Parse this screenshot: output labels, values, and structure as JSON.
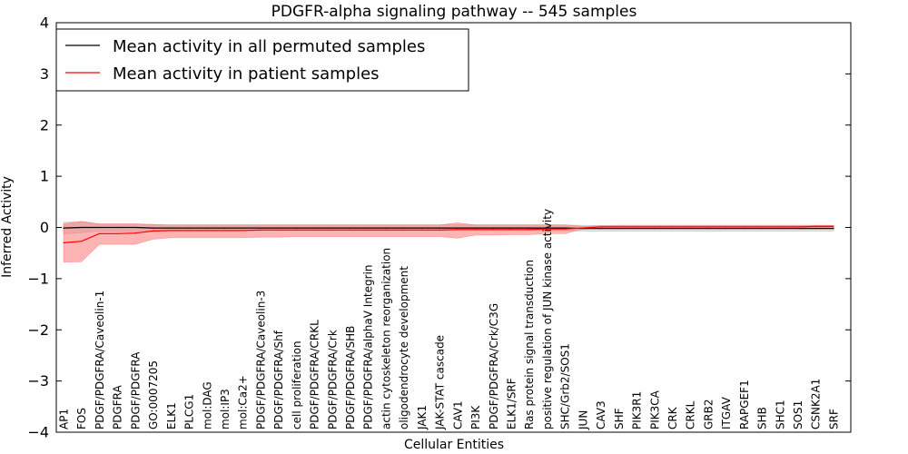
{
  "chart_data": {
    "type": "line",
    "title": "PDGFR-alpha signaling pathway -- 545 samples",
    "xlabel": "Cellular Entities",
    "ylabel": "Inferred Activity",
    "ylim": [
      -4,
      4
    ],
    "yticks": [
      -4,
      -3,
      -2,
      -1,
      0,
      1,
      2,
      3,
      4
    ],
    "ytick_labels": [
      "−4",
      "−3",
      "−2",
      "−1",
      "0",
      "1",
      "2",
      "3",
      "4"
    ],
    "legend_position": "top-left",
    "grid": false,
    "categories": [
      "AP1",
      "FOS",
      "PDGF/PDGFRA/Caveolin-1",
      "PDGFRA",
      "PDGF/PDGFRA",
      "GO:0007205",
      "ELK1",
      "PLCG1",
      "mol:DAG",
      "mol:IP3",
      "mol:Ca2+",
      "PDGF/PDGFRA/Caveolin-3",
      "PDGF/PDGFRA/Shf",
      "cell proliferation",
      "PDGF/PDGFRA/CRKL",
      "PDGF/PDGFRA/Crk",
      "PDGF/PDGFRA/SHB",
      "PDGF/PDGFRA/alphaV Integrin",
      "actin cytoskeleton reorganization",
      "oligodendrocyte development",
      "JAK1",
      "JAK-STAT cascade",
      "CAV1",
      "PI3K",
      "PDGF/PDGFRA/Crk/C3G",
      "ELK1/SRF",
      "Ras protein signal transduction",
      "positive regulation of JUN kinase activity",
      "SHC/Grb2/SOS1",
      "JUN",
      "CAV3",
      "SHF",
      "PIK3R1",
      "PIK3CA",
      "CRK",
      "CRKL",
      "GRB2",
      "ITGAV",
      "RAPGEF1",
      "SHB",
      "SHC1",
      "SOS1",
      "CSNK2A1",
      "SRF"
    ],
    "series": [
      {
        "name": "Mean activity in all permuted samples",
        "color": "#000000",
        "band_color": "#a0a0a0",
        "values": [
          -0.01,
          0.0,
          0.0,
          0.0,
          0.0,
          -0.01,
          -0.01,
          -0.01,
          -0.01,
          -0.01,
          -0.01,
          -0.01,
          -0.01,
          -0.01,
          -0.01,
          -0.01,
          -0.01,
          -0.01,
          -0.01,
          -0.01,
          -0.01,
          -0.01,
          -0.01,
          -0.01,
          -0.01,
          -0.01,
          -0.01,
          -0.01,
          -0.01,
          -0.02,
          -0.02,
          -0.02,
          -0.02,
          -0.02,
          -0.02,
          -0.02,
          -0.02,
          -0.02,
          -0.02,
          -0.02,
          -0.02,
          -0.02,
          -0.02,
          -0.02
        ],
        "lower": [
          -0.13,
          -0.1,
          -0.07,
          -0.07,
          -0.07,
          -0.06,
          -0.06,
          -0.06,
          -0.06,
          -0.06,
          -0.06,
          -0.06,
          -0.06,
          -0.06,
          -0.06,
          -0.06,
          -0.06,
          -0.06,
          -0.06,
          -0.06,
          -0.06,
          -0.06,
          -0.06,
          -0.06,
          -0.06,
          -0.06,
          -0.06,
          -0.06,
          -0.06,
          -0.07,
          -0.07,
          -0.07,
          -0.07,
          -0.07,
          -0.07,
          -0.07,
          -0.08,
          -0.07,
          -0.07,
          -0.07,
          -0.07,
          -0.07,
          -0.07,
          -0.07
        ],
        "upper": [
          0.1,
          0.11,
          0.07,
          0.07,
          0.07,
          0.05,
          0.05,
          0.05,
          0.05,
          0.05,
          0.05,
          0.05,
          0.05,
          0.05,
          0.05,
          0.05,
          0.05,
          0.05,
          0.05,
          0.05,
          0.05,
          0.05,
          0.05,
          0.05,
          0.05,
          0.05,
          0.05,
          0.05,
          0.05,
          0.04,
          0.04,
          0.04,
          0.04,
          0.04,
          0.04,
          0.04,
          0.04,
          0.04,
          0.04,
          0.04,
          0.04,
          0.04,
          0.04,
          0.04
        ]
      },
      {
        "name": "Mean activity in patient samples",
        "color": "#ff0000",
        "band_color": "#ff6a6a",
        "values": [
          -0.3,
          -0.27,
          -0.12,
          -0.12,
          -0.11,
          -0.07,
          -0.06,
          -0.06,
          -0.06,
          -0.06,
          -0.06,
          -0.05,
          -0.05,
          -0.05,
          -0.05,
          -0.05,
          -0.05,
          -0.05,
          -0.05,
          -0.05,
          -0.05,
          -0.05,
          -0.04,
          -0.04,
          -0.04,
          -0.04,
          -0.04,
          -0.03,
          -0.03,
          -0.01,
          0.01,
          0.01,
          0.01,
          0.01,
          0.01,
          0.01,
          0.01,
          0.01,
          0.01,
          0.01,
          0.01,
          0.01,
          0.02,
          0.02
        ],
        "lower": [
          -0.68,
          -0.67,
          -0.33,
          -0.33,
          -0.33,
          -0.23,
          -0.2,
          -0.2,
          -0.2,
          -0.2,
          -0.2,
          -0.19,
          -0.19,
          -0.18,
          -0.18,
          -0.18,
          -0.18,
          -0.18,
          -0.18,
          -0.18,
          -0.18,
          -0.18,
          -0.21,
          -0.15,
          -0.15,
          -0.14,
          -0.14,
          -0.12,
          -0.12,
          -0.03,
          -0.01,
          -0.01,
          -0.01,
          -0.01,
          -0.01,
          -0.01,
          -0.01,
          -0.01,
          -0.01,
          -0.01,
          -0.01,
          -0.01,
          -0.01,
          -0.01
        ],
        "upper": [
          0.07,
          0.12,
          0.07,
          0.07,
          0.07,
          0.06,
          0.05,
          0.05,
          0.05,
          0.05,
          0.05,
          0.05,
          0.05,
          0.05,
          0.05,
          0.05,
          0.05,
          0.05,
          0.05,
          0.05,
          0.05,
          0.05,
          0.09,
          0.05,
          0.05,
          0.05,
          0.05,
          0.05,
          0.05,
          0.02,
          0.03,
          0.04,
          0.04,
          0.04,
          0.04,
          0.04,
          0.04,
          0.04,
          0.04,
          0.04,
          0.04,
          0.04,
          0.04,
          0.04
        ]
      }
    ]
  }
}
